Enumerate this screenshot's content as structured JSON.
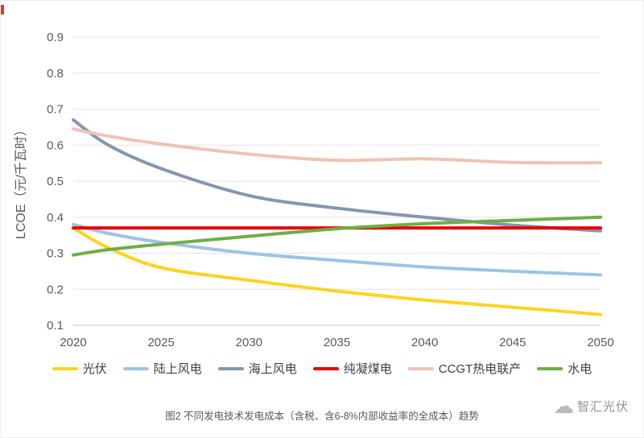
{
  "page": {
    "caption": "图2 不同发电技术发电成本（含税、含6-8%内部收益率的全成本）趋势",
    "watermark": "智汇光伏"
  },
  "chart_data": {
    "type": "line",
    "title": "",
    "xlabel": "",
    "ylabel": "LCOE（元/千瓦时）",
    "xlim": [
      2020,
      2050
    ],
    "ylim": [
      0.1,
      0.9
    ],
    "xticks": [
      2020,
      2025,
      2030,
      2035,
      2040,
      2045,
      2050
    ],
    "yticks": [
      0.1,
      0.2,
      0.3,
      0.4,
      0.5,
      0.6,
      0.7,
      0.8,
      0.9
    ],
    "grid": true,
    "legend_position": "bottom",
    "x": [
      2020,
      2022,
      2025,
      2030,
      2035,
      2040,
      2045,
      2050
    ],
    "series": [
      {
        "name": "光伏",
        "color": "#FFD320",
        "values": [
          0.37,
          0.315,
          0.26,
          0.225,
          0.195,
          0.17,
          0.15,
          0.13
        ]
      },
      {
        "name": "陆上风电",
        "color": "#9DC3E6",
        "values": [
          0.38,
          0.355,
          0.33,
          0.3,
          0.28,
          0.262,
          0.25,
          0.24
        ]
      },
      {
        "name": "海上风电",
        "color": "#8496B0",
        "values": [
          0.67,
          0.6,
          0.535,
          0.46,
          0.425,
          0.4,
          0.378,
          0.362
        ]
      },
      {
        "name": "纯凝煤电",
        "color": "#E60000",
        "values": [
          0.37,
          0.37,
          0.37,
          0.37,
          0.37,
          0.37,
          0.37,
          0.37
        ]
      },
      {
        "name": "CCGT热电联产",
        "color": "#F0C2B6",
        "values": [
          0.645,
          0.625,
          0.603,
          0.575,
          0.558,
          0.562,
          0.552,
          0.551
        ]
      },
      {
        "name": "水电",
        "color": "#70AD47",
        "values": [
          0.295,
          0.31,
          0.325,
          0.347,
          0.368,
          0.382,
          0.391,
          0.4
        ]
      }
    ]
  }
}
